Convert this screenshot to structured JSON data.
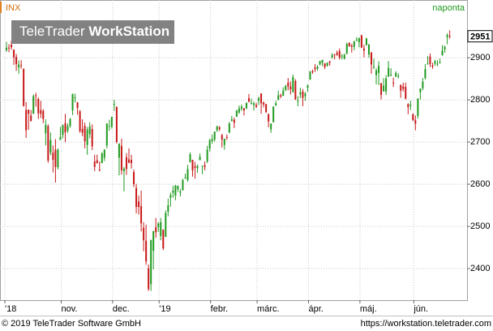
{
  "chart_data": {
    "type": "candlestick",
    "title": "INX",
    "frequency": "naponta",
    "logo": {
      "brand": "TeleTrader",
      "product": "WorkStation"
    },
    "up_color": "#1f9a1f",
    "down_color": "#c81818",
    "grid": true,
    "ylim": [
      2325,
      3037
    ],
    "yticks": [
      2400,
      2500,
      2600,
      2700,
      2800,
      2900
    ],
    "categories": [
      "'18",
      null,
      null,
      null,
      null,
      null,
      null,
      null,
      null,
      null,
      null,
      null,
      null,
      null,
      null,
      null,
      null,
      null,
      null,
      null,
      null,
      null,
      null,
      "nov.",
      null,
      null,
      null,
      null,
      null,
      null,
      null,
      null,
      null,
      null,
      null,
      null,
      null,
      null,
      null,
      null,
      null,
      null,
      null,
      null,
      "dec.",
      null,
      null,
      null,
      null,
      null,
      null,
      null,
      null,
      null,
      null,
      null,
      null,
      null,
      null,
      null,
      null,
      null,
      null,
      "'19",
      null,
      null,
      null,
      null,
      null,
      null,
      null,
      null,
      null,
      null,
      null,
      null,
      null,
      null,
      null,
      null,
      null,
      null,
      null,
      null,
      "febr.",
      null,
      null,
      null,
      null,
      null,
      null,
      null,
      null,
      null,
      null,
      null,
      null,
      null,
      null,
      null,
      null,
      null,
      null,
      "márc.",
      null,
      null,
      null,
      null,
      null,
      null,
      null,
      null,
      null,
      null,
      null,
      null,
      null,
      null,
      null,
      null,
      null,
      null,
      null,
      null,
      "ápr.",
      null,
      null,
      null,
      null,
      null,
      null,
      null,
      null,
      null,
      null,
      null,
      null,
      null,
      null,
      null,
      null,
      null,
      null,
      null,
      null,
      "máj.",
      null,
      null,
      null,
      null,
      null,
      null,
      null,
      null,
      null,
      null,
      null,
      null,
      null,
      null,
      null,
      null,
      null,
      null,
      null,
      null,
      null,
      "jún.",
      null,
      null,
      null,
      null,
      null,
      null,
      null,
      null,
      null,
      null,
      null,
      null,
      null,
      null
    ],
    "open": [
      2918,
      2924,
      2931,
      2919,
      2902,
      2877,
      2882,
      2874,
      2776,
      2777,
      2763,
      2767,
      2811,
      2802,
      2776,
      2774,
      2721,
      2738,
      2675,
      2675,
      2682,
      2640,
      2705,
      2717,
      2745,
      2727,
      2738,
      2775,
      2806,
      2794,
      2773,
      2731,
      2738,
      2693,
      2719,
      2731,
      2654,
      2657,
      2634,
      2650,
      2663,
      2692,
      2736,
      2737,
      2790,
      2783,
      2663,
      2691,
      2631,
      2664,
      2659,
      2658,
      2629,
      2591,
      2559,
      2548,
      2497,
      2466,
      2401,
      2363,
      2442,
      2498,
      2498,
      2477,
      2492,
      2475,
      2535,
      2568,
      2580,
      2573,
      2588,
      2580,
      2586,
      2614,
      2610,
      2652,
      2658,
      2643,
      2638,
      2657,
      2644,
      2645,
      2654,
      2685,
      2702,
      2706,
      2728,
      2735,
      2717,
      2693,
      2712,
      2722,
      2750,
      2753,
      2760,
      2770,
      2779,
      2780,
      2780,
      2804,
      2792,
      2788,
      2788,
      2798,
      2815,
      2794,
      2790,
      2766,
      2730,
      2747,
      2787,
      2800,
      2811,
      2810,
      2823,
      2841,
      2832,
      2819,
      2845,
      2796,
      2813,
      2820,
      2809,
      2829,
      2848,
      2868,
      2877,
      2874,
      2884,
      2888,
      2887,
      2881,
      2891,
      2901,
      2908,
      2912,
      2916,
      2905,
      2898,
      2910,
      2935,
      2929,
      2926,
      2941,
      2937,
      2953,
      2922,
      2930,
      2908,
      2913,
      2879,
      2859,
      2864,
      2840,
      2820,
      2820,
      2855,
      2858,
      2841,
      2855,
      2856,
      2836,
      2832,
      2831,
      2790,
      2786,
      2766,
      2752,
      2762,
      2818,
      2828,
      2852,
      2885,
      2903,
      2882,
      2886,
      2886,
      2889,
      2906,
      2920,
      2949,
      2952
    ],
    "high": [
      2938,
      2932,
      2940,
      2920,
      2909,
      2894,
      2894,
      2874,
      2795,
      2777,
      2776,
      2813,
      2817,
      2806,
      2798,
      2778,
      2754,
      2742,
      2723,
      2692,
      2707,
      2685,
      2736,
      2742,
      2767,
      2744,
      2757,
      2815,
      2815,
      2795,
      2776,
      2754,
      2746,
      2736,
      2747,
      2742,
      2670,
      2670,
      2654,
      2676,
      2683,
      2744,
      2753,
      2760,
      2800,
      2785,
      2697,
      2708,
      2641,
      2674,
      2685,
      2670,
      2635,
      2601,
      2573,
      2585,
      2510,
      2504,
      2410,
      2468,
      2489,
      2520,
      2510,
      2520,
      2493,
      2538,
      2566,
      2580,
      2596,
      2598,
      2597,
      2589,
      2613,
      2625,
      2646,
      2675,
      2658,
      2653,
      2647,
      2673,
      2644,
      2654,
      2691,
      2708,
      2718,
      2725,
      2738,
      2738,
      2719,
      2708,
      2718,
      2748,
      2762,
      2758,
      2776,
      2787,
      2789,
      2781,
      2794,
      2814,
      2803,
      2796,
      2793,
      2808,
      2816,
      2796,
      2791,
      2768,
      2744,
      2785,
      2798,
      2822,
      2815,
      2830,
      2836,
      2852,
      2844,
      2860,
      2849,
      2809,
      2829,
      2826,
      2819,
      2837,
      2869,
      2872,
      2885,
      2882,
      2893,
      2895,
      2887,
      2889,
      2893,
      2911,
      2909,
      2917,
      2922,
      2909,
      2910,
      2936,
      2937,
      2933,
      2940,
      2949,
      2948,
      2955,
      2931,
      2947,
      2932,
      2913,
      2898,
      2875,
      2892,
      2840,
      2852,
      2859,
      2892,
      2875,
      2853,
      2868,
      2863,
      2836,
      2841,
      2841,
      2792,
      2798,
      2768,
      2763,
      2804,
      2827,
      2852,
      2885,
      2904,
      2910,
      2888,
      2895,
      2894,
      2898,
      2930,
      2929,
      2958,
      2965
    ],
    "low": [
      2914,
      2913,
      2919,
      2883,
      2869,
      2862,
      2874,
      2784,
      2710,
      2729,
      2749,
      2767,
      2784,
      2755,
      2757,
      2745,
      2692,
      2651,
      2669,
      2628,
      2604,
      2635,
      2705,
      2709,
      2700,
      2722,
      2734,
      2764,
      2794,
      2765,
      2722,
      2714,
      2685,
      2670,
      2709,
      2681,
      2631,
      2649,
      2631,
      2650,
      2655,
      2685,
      2727,
      2732,
      2774,
      2697,
      2621,
      2623,
      2583,
      2622,
      2650,
      2637,
      2593,
      2531,
      2528,
      2488,
      2441,
      2409,
      2347,
      2347,
      2398,
      2473,
      2487,
      2467,
      2444,
      2475,
      2524,
      2547,
      2568,
      2562,
      2582,
      2571,
      2585,
      2613,
      2606,
      2652,
      2618,
      2613,
      2627,
      2657,
      2624,
      2633,
      2650,
      2678,
      2696,
      2701,
      2724,
      2726,
      2687,
      2682,
      2705,
      2722,
      2749,
      2733,
      2760,
      2767,
      2774,
      2763,
      2778,
      2794,
      2789,
      2775,
      2781,
      2788,
      2767,
      2782,
      2769,
      2735,
      2722,
      2747,
      2786,
      2799,
      2804,
      2809,
      2821,
      2823,
      2813,
      2817,
      2800,
      2785,
      2804,
      2785,
      2798,
      2819,
      2848,
      2862,
      2866,
      2869,
      2882,
      2880,
      2873,
      2879,
      2881,
      2898,
      2896,
      2904,
      2896,
      2896,
      2896,
      2908,
      2926,
      2912,
      2918,
      2939,
      2925,
      2923,
      2901,
      2929,
      2900,
      2862,
      2873,
      2837,
      2835,
      2801,
      2820,
      2812,
      2855,
      2856,
      2831,
      2855,
      2851,
      2805,
      2820,
      2801,
      2766,
      2776,
      2750,
      2728,
      2756,
      2801,
      2823,
      2848,
      2885,
      2878,
      2874,
      2881,
      2880,
      2886,
      2905,
      2912,
      2932,
      2945
    ],
    "close": [
      2924,
      2923,
      2925,
      2901,
      2885,
      2884,
      2880,
      2786,
      2728,
      2767,
      2750,
      2809,
      2810,
      2768,
      2767,
      2755,
      2741,
      2656,
      2705,
      2658,
      2641,
      2682,
      2712,
      2740,
      2723,
      2738,
      2755,
      2814,
      2806,
      2781,
      2726,
      2722,
      2702,
      2730,
      2737,
      2690,
      2641,
      2650,
      2633,
      2673,
      2682,
      2744,
      2738,
      2760,
      2790,
      2700,
      2696,
      2633,
      2637,
      2636,
      2651,
      2650,
      2600,
      2546,
      2546,
      2507,
      2467,
      2417,
      2351,
      2468,
      2489,
      2486,
      2507,
      2510,
      2448,
      2532,
      2550,
      2574,
      2585,
      2597,
      2596,
      2583,
      2610,
      2616,
      2636,
      2671,
      2633,
      2639,
      2643,
      2665,
      2644,
      2641,
      2682,
      2704,
      2707,
      2725,
      2738,
      2731,
      2706,
      2708,
      2710,
      2744,
      2754,
      2746,
      2775,
      2780,
      2784,
      2775,
      2793,
      2796,
      2793,
      2792,
      2784,
      2804,
      2792,
      2789,
      2771,
      2749,
      2744,
      2784,
      2792,
      2811,
      2808,
      2822,
      2833,
      2832,
      2825,
      2854,
      2801,
      2798,
      2818,
      2805,
      2815,
      2834,
      2867,
      2867,
      2873,
      2879,
      2892,
      2895,
      2878,
      2888,
      2888,
      2907,
      2906,
      2907,
      2900,
      2905,
      2907,
      2933,
      2927,
      2926,
      2939,
      2943,
      2946,
      2924,
      2917,
      2946,
      2932,
      2884,
      2879,
      2870,
      2881,
      2812,
      2834,
      2851,
      2876,
      2860,
      2840,
      2864,
      2857,
      2822,
      2826,
      2803,
      2783,
      2789,
      2752,
      2744,
      2803,
      2827,
      2843,
      2873,
      2886,
      2885,
      2879,
      2892,
      2886,
      2890,
      2917,
      2926,
      2954,
      2951
    ]
  },
  "footer": {
    "copyright": "© 2019 TeleTrader Software GmbH",
    "url": "https://workstation.teletrader.com"
  }
}
